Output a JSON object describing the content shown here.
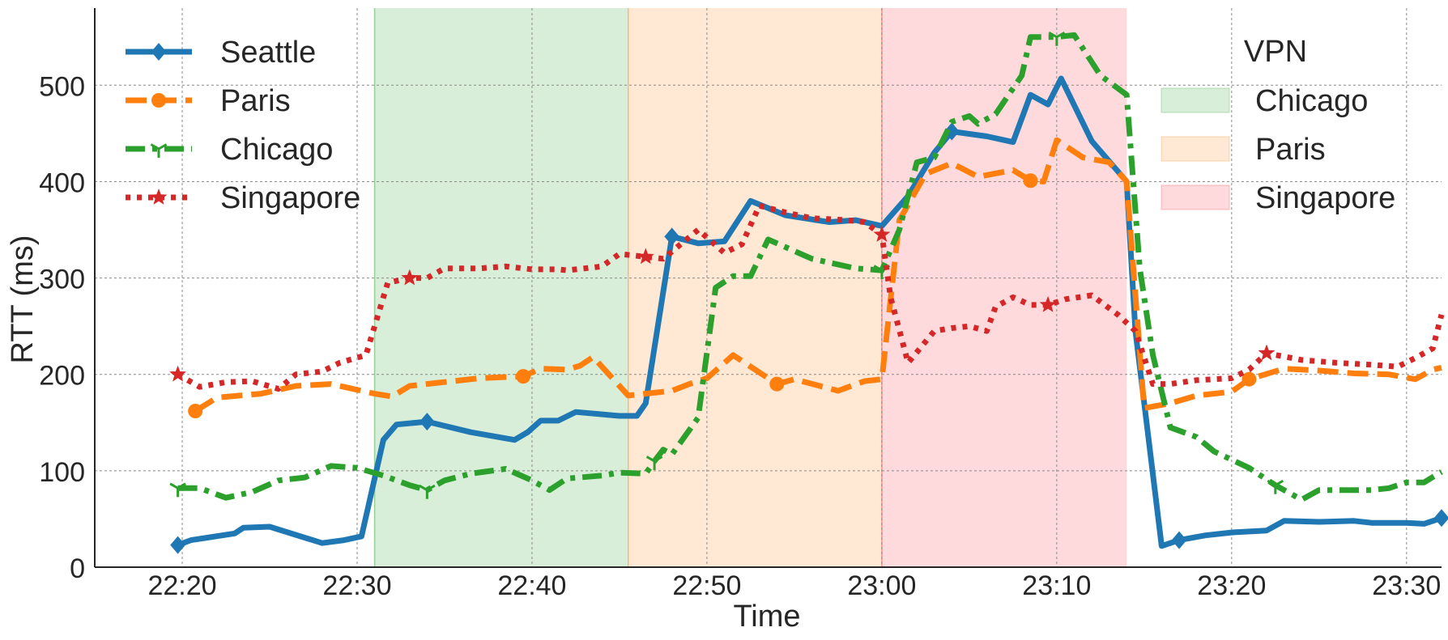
{
  "chart_data": {
    "type": "line",
    "title": "",
    "xlabel": "Time",
    "ylabel": "RTT (ms)",
    "xlim": [
      "22:15:00",
      "23:32:00"
    ],
    "ylim": [
      0,
      580
    ],
    "grid": true,
    "x_tick_labels": [
      "22:20",
      "22:30",
      "22:40",
      "22:50",
      "23:00",
      "23:10",
      "23:20",
      "23:30"
    ],
    "y_tick_labels": [
      "0",
      "100",
      "200",
      "300",
      "400",
      "500"
    ],
    "legend_series_placement": "top-left",
    "legend_vpn_placement": "top-right",
    "vpn_legend_title": "VPN",
    "vpn_periods": [
      {
        "name": "Chicago",
        "start": "22:31:00",
        "end": "22:45:30",
        "color": "#2ca02c"
      },
      {
        "name": "Paris",
        "start": "22:45:30",
        "end": "23:00:00",
        "color": "#ff7f0e"
      },
      {
        "name": "Singapore",
        "start": "23:00:00",
        "end": "23:14:00",
        "color": "#f8333c"
      }
    ],
    "series": [
      {
        "name": "Seattle",
        "color": "#1f77b4",
        "dash": "solid",
        "marker": "diamond",
        "points": [
          [
            "22:19:45",
            23
          ],
          [
            "22:20:30",
            28
          ],
          [
            "22:23:00",
            35
          ],
          [
            "22:23:30",
            41
          ],
          [
            "22:25:00",
            42
          ],
          [
            "22:28:00",
            25
          ],
          [
            "22:29:15",
            28
          ],
          [
            "22:30:15",
            32
          ],
          [
            "22:31:30",
            132
          ],
          [
            "22:32:15",
            148
          ],
          [
            "22:34:00",
            151
          ],
          [
            "22:36:30",
            140
          ],
          [
            "22:39:00",
            132
          ],
          [
            "22:39:45",
            140
          ],
          [
            "22:40:30",
            152
          ],
          [
            "22:41:30",
            152
          ],
          [
            "22:42:30",
            161
          ],
          [
            "22:45:00",
            157
          ],
          [
            "22:46:00",
            157
          ],
          [
            "22:46:30",
            170
          ],
          [
            "22:48:00",
            343
          ],
          [
            "22:49:30",
            336
          ],
          [
            "22:51:00",
            338
          ],
          [
            "22:52:30",
            380
          ],
          [
            "22:54:30",
            365
          ],
          [
            "22:57:00",
            358
          ],
          [
            "22:58:30",
            360
          ],
          [
            "23:00:00",
            354
          ],
          [
            "23:01:30",
            385
          ],
          [
            "23:03:00",
            430
          ],
          [
            "23:04:00",
            452
          ],
          [
            "23:06:00",
            447
          ],
          [
            "23:07:30",
            441
          ],
          [
            "23:08:30",
            490
          ],
          [
            "23:09:30",
            480
          ],
          [
            "23:10:15",
            507
          ],
          [
            "23:12:00",
            442
          ],
          [
            "23:14:00",
            400
          ],
          [
            "23:14:30",
            245
          ],
          [
            "23:16:00",
            22
          ],
          [
            "23:17:00",
            28
          ],
          [
            "23:18:30",
            33
          ],
          [
            "23:20:00",
            36
          ],
          [
            "23:22:00",
            38
          ],
          [
            "23:23:00",
            48
          ],
          [
            "23:25:00",
            47
          ],
          [
            "23:27:00",
            48
          ],
          [
            "23:28:00",
            46
          ],
          [
            "23:30:00",
            46
          ],
          [
            "23:31:00",
            45
          ],
          [
            "23:32:00",
            51
          ]
        ]
      },
      {
        "name": "Paris",
        "color": "#ff7f0e",
        "dash": "dashed",
        "marker": "circle",
        "points": [
          [
            "22:20:45",
            162
          ],
          [
            "22:22:00",
            176
          ],
          [
            "22:24:30",
            180
          ],
          [
            "22:26:30",
            188
          ],
          [
            "22:28:30",
            190
          ],
          [
            "22:31:00",
            180
          ],
          [
            "22:32:00",
            177
          ],
          [
            "22:33:00",
            188
          ],
          [
            "22:34:30",
            191
          ],
          [
            "22:37:00",
            196
          ],
          [
            "22:39:30",
            198
          ],
          [
            "22:40:30",
            206
          ],
          [
            "22:42:00",
            205
          ],
          [
            "22:42:45",
            209
          ],
          [
            "22:43:30",
            218
          ],
          [
            "22:45:30",
            178
          ],
          [
            "22:48:00",
            183
          ],
          [
            "22:49:00",
            190
          ],
          [
            "22:50:00",
            196
          ],
          [
            "22:51:30",
            220
          ],
          [
            "22:54:00",
            190
          ],
          [
            "22:55:00",
            195
          ],
          [
            "22:57:30",
            183
          ],
          [
            "22:59:00",
            193
          ],
          [
            "23:00:00",
            195
          ],
          [
            "23:01:00",
            360
          ],
          [
            "23:02:30",
            408
          ],
          [
            "23:04:00",
            419
          ],
          [
            "23:05:30",
            405
          ],
          [
            "23:07:30",
            412
          ],
          [
            "23:08:30",
            401
          ],
          [
            "23:09:15",
            400
          ],
          [
            "23:10:00",
            443
          ],
          [
            "23:11:30",
            425
          ],
          [
            "23:13:00",
            420
          ],
          [
            "23:14:00",
            400
          ],
          [
            "23:15:00",
            165
          ],
          [
            "23:16:30",
            170
          ],
          [
            "23:18:00",
            178
          ],
          [
            "23:20:00",
            182
          ],
          [
            "23:21:00",
            195
          ],
          [
            "23:23:00",
            206
          ],
          [
            "23:25:00",
            204
          ],
          [
            "23:27:00",
            201
          ],
          [
            "23:29:00",
            200
          ],
          [
            "23:30:30",
            195
          ],
          [
            "23:31:30",
            205
          ],
          [
            "23:32:00",
            207
          ]
        ]
      },
      {
        "name": "Chicago",
        "color": "#2ca02c",
        "dash": "dashdot",
        "marker": "tri_down",
        "points": [
          [
            "22:19:45",
            82
          ],
          [
            "22:21:00",
            82
          ],
          [
            "22:22:30",
            72
          ],
          [
            "22:24:00",
            78
          ],
          [
            "22:25:30",
            90
          ],
          [
            "22:27:00",
            93
          ],
          [
            "22:28:30",
            105
          ],
          [
            "22:30:00",
            103
          ],
          [
            "22:31:30",
            95
          ],
          [
            "22:33:00",
            85
          ],
          [
            "22:34:00",
            80
          ],
          [
            "22:35:00",
            90
          ],
          [
            "22:36:30",
            97
          ],
          [
            "22:38:30",
            102
          ],
          [
            "22:40:00",
            90
          ],
          [
            "22:41:00",
            80
          ],
          [
            "22:42:00",
            92
          ],
          [
            "22:44:00",
            95
          ],
          [
            "22:45:00",
            98
          ],
          [
            "22:46:30",
            97
          ],
          [
            "22:47:00",
            110
          ],
          [
            "22:47:30",
            122
          ],
          [
            "22:48:00",
            117
          ],
          [
            "22:49:30",
            155
          ],
          [
            "22:50:30",
            290
          ],
          [
            "22:51:30",
            302
          ],
          [
            "22:52:30",
            302
          ],
          [
            "22:53:30",
            340
          ],
          [
            "22:56:00",
            320
          ],
          [
            "22:58:30",
            310
          ],
          [
            "23:00:00",
            308
          ],
          [
            "23:01:00",
            350
          ],
          [
            "23:02:00",
            420
          ],
          [
            "23:03:00",
            425
          ],
          [
            "23:04:00",
            462
          ],
          [
            "23:05:00",
            468
          ],
          [
            "23:05:30",
            460
          ],
          [
            "23:06:30",
            470
          ],
          [
            "23:08:00",
            510
          ],
          [
            "23:08:30",
            550
          ],
          [
            "23:10:00",
            550
          ],
          [
            "23:11:00",
            552
          ],
          [
            "23:12:30",
            510
          ],
          [
            "23:14:00",
            490
          ],
          [
            "23:14:45",
            310
          ],
          [
            "23:15:30",
            220
          ],
          [
            "23:16:30",
            145
          ],
          [
            "23:18:00",
            135
          ],
          [
            "23:19:00",
            120
          ],
          [
            "23:21:00",
            103
          ],
          [
            "23:22:30",
            85
          ],
          [
            "23:24:00",
            70
          ],
          [
            "23:25:00",
            80
          ],
          [
            "23:28:00",
            80
          ],
          [
            "23:29:00",
            82
          ],
          [
            "23:30:00",
            88
          ],
          [
            "23:31:00",
            88
          ],
          [
            "23:32:00",
            99
          ]
        ]
      },
      {
        "name": "Singapore",
        "color": "#d62728",
        "dash": "dotted",
        "marker": "star",
        "points": [
          [
            "22:19:45",
            200
          ],
          [
            "22:21:00",
            187
          ],
          [
            "22:22:30",
            192
          ],
          [
            "22:24:00",
            193
          ],
          [
            "22:25:30",
            185
          ],
          [
            "22:26:30",
            200
          ],
          [
            "22:28:00",
            203
          ],
          [
            "22:29:00",
            212
          ],
          [
            "22:30:30",
            220
          ],
          [
            "22:31:45",
            295
          ],
          [
            "22:33:00",
            300
          ],
          [
            "22:34:00",
            300
          ],
          [
            "22:35:00",
            310
          ],
          [
            "22:37:00",
            310
          ],
          [
            "22:38:30",
            312
          ],
          [
            "22:40:00",
            309
          ],
          [
            "22:41:30",
            309
          ],
          [
            "22:42:00",
            308
          ],
          [
            "22:44:00",
            312
          ],
          [
            "22:45:00",
            325
          ],
          [
            "22:46:30",
            322
          ],
          [
            "22:47:30",
            320
          ],
          [
            "22:49:30",
            350
          ],
          [
            "22:51:00",
            326
          ],
          [
            "22:52:00",
            335
          ],
          [
            "22:53:00",
            375
          ],
          [
            "22:54:30",
            368
          ],
          [
            "22:56:00",
            362
          ],
          [
            "22:58:00",
            360
          ],
          [
            "22:59:00",
            358
          ],
          [
            "23:00:00",
            345
          ],
          [
            "23:00:30",
            280
          ],
          [
            "23:01:30",
            212
          ],
          [
            "23:03:00",
            245
          ],
          [
            "23:04:00",
            248
          ],
          [
            "23:05:00",
            250
          ],
          [
            "23:06:00",
            245
          ],
          [
            "23:06:30",
            270
          ],
          [
            "23:07:30",
            280
          ],
          [
            "23:08:30",
            272
          ],
          [
            "23:09:30",
            272
          ],
          [
            "23:10:30",
            278
          ],
          [
            "23:12:00",
            282
          ],
          [
            "23:13:30",
            262
          ],
          [
            "23:14:30",
            245
          ],
          [
            "23:15:30",
            190
          ],
          [
            "23:16:30",
            190
          ],
          [
            "23:18:00",
            194
          ],
          [
            "23:20:00",
            196
          ],
          [
            "23:21:00",
            205
          ],
          [
            "23:22:00",
            222
          ],
          [
            "23:24:00",
            215
          ],
          [
            "23:26:00",
            212
          ],
          [
            "23:28:00",
            210
          ],
          [
            "23:29:30",
            208
          ],
          [
            "23:30:30",
            217
          ],
          [
            "23:31:30",
            227
          ],
          [
            "23:32:00",
            262
          ]
        ]
      }
    ]
  }
}
